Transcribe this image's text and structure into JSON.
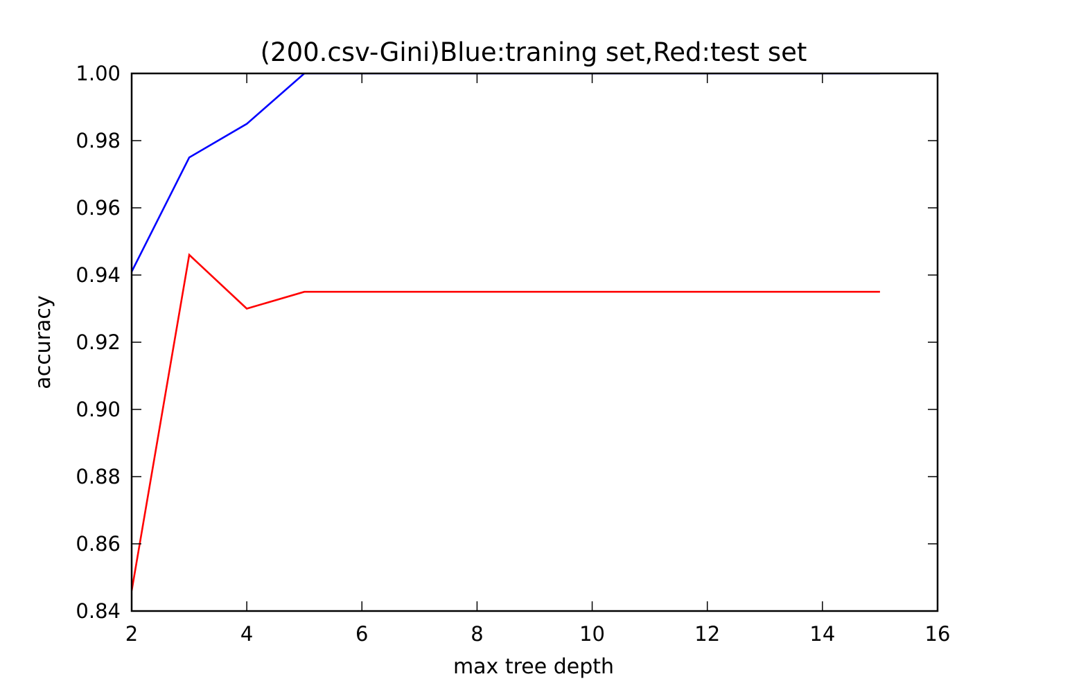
{
  "chart_data": {
    "type": "line",
    "title": "(200.csv-Gini)Blue:traning set,Red:test set",
    "xlabel": "max tree depth",
    "ylabel": "accuracy",
    "xlim": [
      2,
      16
    ],
    "ylim": [
      0.84,
      1.0
    ],
    "x_ticks": [
      2,
      4,
      6,
      8,
      10,
      12,
      14,
      16
    ],
    "x_tick_labels": [
      "2",
      "4",
      "6",
      "8",
      "10",
      "12",
      "14",
      "16"
    ],
    "y_ticks": [
      0.84,
      0.86,
      0.88,
      0.9,
      0.92,
      0.94,
      0.96,
      0.98,
      1.0
    ],
    "y_tick_labels": [
      "0.84",
      "0.86",
      "0.88",
      "0.90",
      "0.92",
      "0.94",
      "0.96",
      "0.98",
      "1.00"
    ],
    "grid": false,
    "legend": "none",
    "x": [
      2,
      3,
      4,
      5,
      6,
      7,
      8,
      9,
      10,
      11,
      12,
      13,
      14,
      15
    ],
    "series": [
      {
        "color": "#0000ff",
        "values": [
          0.941,
          0.975,
          0.985,
          1.0,
          1.0,
          1.0,
          1.0,
          1.0,
          1.0,
          1.0,
          1.0,
          1.0,
          1.0,
          1.0
        ]
      },
      {
        "color": "#ff0000",
        "values": [
          0.846,
          0.946,
          0.93,
          0.935,
          0.935,
          0.935,
          0.935,
          0.935,
          0.935,
          0.935,
          0.935,
          0.935,
          0.935,
          0.935
        ]
      }
    ]
  }
}
